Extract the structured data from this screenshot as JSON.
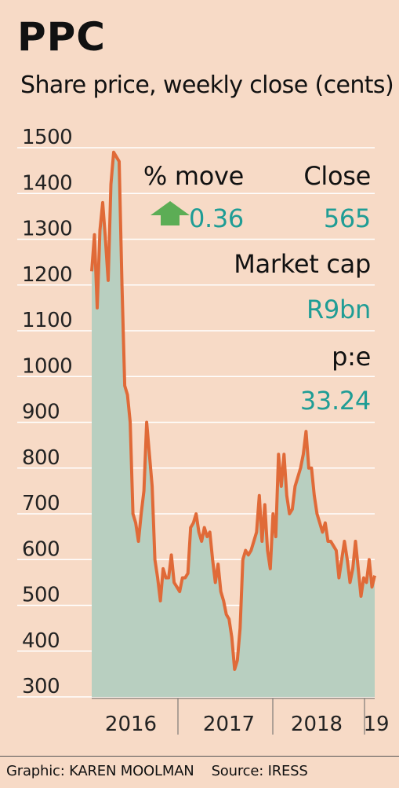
{
  "header": {
    "title": "PPC",
    "subtitle": "Share price, weekly close (cents)"
  },
  "stats": {
    "move_label": "% move",
    "close_label": "Close",
    "move_value": "0.36",
    "move_direction": "up",
    "close_value": "565",
    "market_cap_label": "Market cap",
    "market_cap_value": "R9bn",
    "pe_label": "p:e",
    "pe_value": "33.24"
  },
  "footer": {
    "graphic_credit": "Graphic: KAREN MOOLMAN",
    "source": "Source: IRESS"
  },
  "colors": {
    "background": "#f7dac6",
    "area_fill": "#b8cfc0",
    "line": "#e06a38",
    "teal_text": "#1f9d95",
    "arrow": "#5cad55"
  },
  "chart_data": {
    "type": "area",
    "title": "PPC",
    "subtitle": "Share price, weekly close (cents)",
    "xlabel": "",
    "ylabel": "",
    "ylim": [
      300,
      1500
    ],
    "y_ticks": [
      1500,
      1400,
      1300,
      1200,
      1100,
      1000,
      900,
      800,
      700,
      600,
      500,
      400,
      300
    ],
    "x_tick_labels": [
      "2016",
      "2017",
      "2018",
      "19"
    ],
    "grid": "horizontal",
    "series": [
      {
        "values": [
          1230,
          1310,
          1150,
          1320,
          1380,
          1300,
          1210,
          1420,
          1490,
          1480,
          1470,
          1200,
          980,
          960,
          900,
          700,
          680,
          640,
          700,
          750,
          900,
          830,
          760,
          600,
          560,
          510,
          580,
          560,
          560,
          610,
          550,
          540,
          530,
          560,
          560,
          570,
          670,
          680,
          700,
          660,
          640,
          670,
          650,
          660,
          600,
          550,
          590,
          530,
          510,
          480,
          470,
          430,
          360,
          380,
          450,
          600,
          620,
          610,
          620,
          640,
          660,
          740,
          640,
          720,
          620,
          580,
          700,
          650,
          830,
          760,
          830,
          740,
          700,
          710,
          760,
          780,
          800,
          830,
          880,
          800,
          800,
          740,
          700,
          680,
          660,
          680,
          640,
          640,
          630,
          620,
          560,
          600,
          640,
          600,
          550,
          580,
          640,
          580,
          520,
          560,
          550,
          600,
          540,
          565
        ]
      }
    ]
  }
}
